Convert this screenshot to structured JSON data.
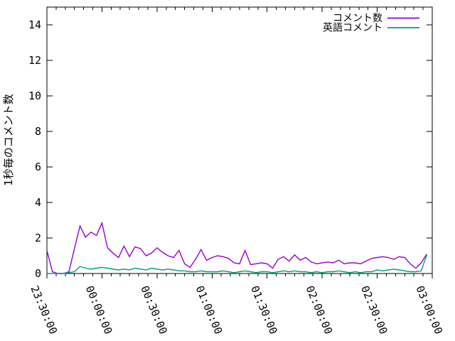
{
  "figure": {
    "background_color": "#ffffff",
    "border_color": "#000000",
    "accent_colors": {
      "series1": "#9400d3",
      "series2": "#009e73"
    }
  },
  "chart_data": {
    "type": "line",
    "title": "",
    "xlabel": "",
    "ylabel": "1秒毎のコメント数",
    "ylim": [
      0,
      15
    ],
    "y_ticks": [
      0,
      2,
      4,
      6,
      8,
      10,
      12,
      14
    ],
    "x_tick_labels": [
      "23:30:00",
      "00:00:00",
      "00:30:00",
      "01:00:00",
      "01:30:00",
      "02:00:00",
      "02:30:00",
      "03:00:00"
    ],
    "x_major_tick_minutes": 30,
    "x_minor_tick_minutes": 5,
    "x_total_minutes": 210,
    "x_step_minutes": 3,
    "grid": false,
    "legend_position": "top-right-inside",
    "x": [
      "23:30:00",
      "23:33:00",
      "23:36:00",
      "23:39:00",
      "23:42:00",
      "23:45:00",
      "23:48:00",
      "23:51:00",
      "23:54:00",
      "23:57:00",
      "00:00:00",
      "00:03:00",
      "00:06:00",
      "00:09:00",
      "00:12:00",
      "00:15:00",
      "00:18:00",
      "00:21:00",
      "00:24:00",
      "00:27:00",
      "00:30:00",
      "00:33:00",
      "00:36:00",
      "00:39:00",
      "00:42:00",
      "00:45:00",
      "00:48:00",
      "00:51:00",
      "00:54:00",
      "00:57:00",
      "01:00:00",
      "01:03:00",
      "01:06:00",
      "01:09:00",
      "01:12:00",
      "01:15:00",
      "01:18:00",
      "01:21:00",
      "01:24:00",
      "01:27:00",
      "01:30:00",
      "01:33:00",
      "01:36:00",
      "01:39:00",
      "01:42:00",
      "01:45:00",
      "01:48:00",
      "01:51:00",
      "01:54:00",
      "01:57:00",
      "02:00:00",
      "02:03:00",
      "02:06:00",
      "02:09:00",
      "02:12:00",
      "02:15:00",
      "02:18:00",
      "02:21:00",
      "02:24:00",
      "02:27:00",
      "02:30:00",
      "02:33:00",
      "02:36:00",
      "02:39:00",
      "02:42:00",
      "02:45:00",
      "02:48:00",
      "02:51:00",
      "02:54:00",
      "02:57:00"
    ],
    "series": [
      {
        "name": "コメント数",
        "color": "#9400d3",
        "values": [
          1.3,
          0.1,
          0,
          0,
          0.1,
          1.4,
          2.68,
          2.05,
          2.33,
          2.15,
          2.85,
          1.45,
          1.15,
          0.9,
          1.55,
          0.95,
          1.5,
          1.4,
          1.0,
          1.15,
          1.45,
          1.2,
          1.0,
          0.9,
          1.3,
          0.55,
          0.35,
          0.8,
          1.35,
          0.75,
          0.9,
          1.0,
          0.95,
          0.85,
          0.6,
          0.55,
          1.3,
          0.5,
          0.55,
          0.6,
          0.55,
          0.3,
          0.8,
          0.95,
          0.7,
          1.05,
          0.75,
          0.9,
          0.65,
          0.55,
          0.6,
          0.65,
          0.6,
          0.75,
          0.55,
          0.6,
          0.6,
          0.55,
          0.7,
          0.85,
          0.9,
          0.95,
          0.9,
          0.8,
          0.95,
          0.9,
          0.55,
          0.3,
          0.6,
          1.1
        ]
      },
      {
        "name": "英語コメント",
        "color": "#009e73",
        "values": [
          0,
          0,
          0,
          0,
          0.05,
          0.1,
          0.4,
          0.3,
          0.25,
          0.3,
          0.35,
          0.3,
          0.25,
          0.2,
          0.25,
          0.2,
          0.3,
          0.25,
          0.2,
          0.3,
          0.25,
          0.2,
          0.25,
          0.2,
          0.15,
          0.15,
          0.1,
          0.1,
          0.15,
          0.1,
          0.1,
          0.1,
          0.15,
          0.1,
          0.05,
          0.1,
          0.15,
          0.1,
          0.05,
          0.1,
          0.1,
          0.05,
          0.1,
          0.15,
          0.1,
          0.15,
          0.1,
          0.1,
          0.05,
          0.1,
          0.05,
          0.1,
          0.1,
          0.15,
          0.1,
          0.05,
          0.1,
          0.05,
          0.1,
          0.1,
          0.2,
          0.15,
          0.2,
          0.25,
          0.2,
          0.15,
          0.1,
          0.1,
          0.15,
          1.05
        ]
      }
    ]
  }
}
